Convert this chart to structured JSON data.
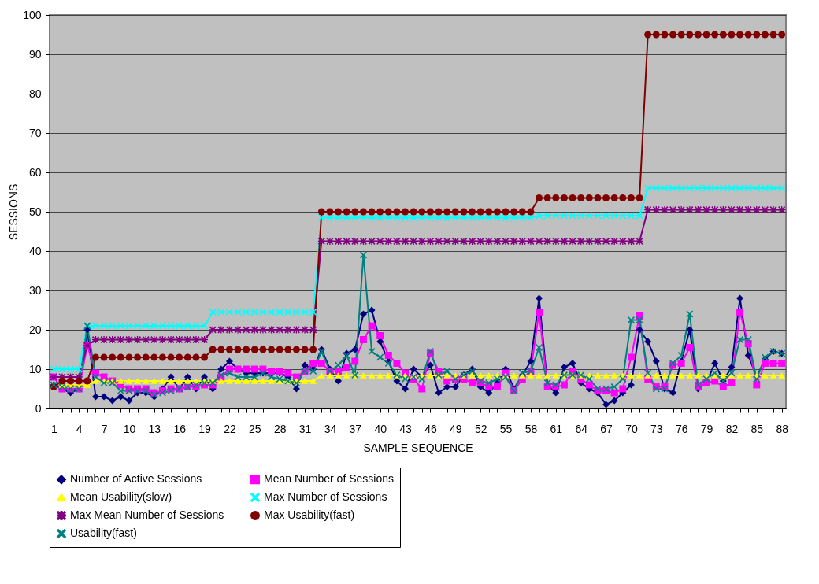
{
  "chart_data": {
    "type": "line",
    "xlabel": "SAMPLE SEQUENCE",
    "ylabel": "SESSIONS",
    "categories": [
      "1",
      null,
      null,
      "4",
      null,
      null,
      "7",
      null,
      null,
      "10",
      null,
      null,
      "13",
      null,
      null,
      "16",
      null,
      null,
      "19",
      null,
      null,
      "22",
      null,
      null,
      "25",
      null,
      null,
      "28",
      null,
      null,
      "31",
      null,
      null,
      "34",
      null,
      null,
      "37",
      null,
      null,
      "40",
      null,
      null,
      "43",
      null,
      null,
      "46",
      null,
      null,
      "49",
      null,
      null,
      "52",
      null,
      null,
      "55",
      null,
      null,
      "58",
      null,
      null,
      "61",
      null,
      null,
      "64",
      null,
      null,
      "67",
      null,
      null,
      "70",
      null,
      null,
      "73",
      null,
      null,
      "76",
      null,
      null,
      "79",
      null,
      null,
      "82",
      null,
      null,
      "85",
      null,
      null,
      "88"
    ],
    "ylim": [
      0,
      100
    ],
    "yticks": [
      0,
      10,
      20,
      30,
      40,
      50,
      60,
      70,
      80,
      90,
      100
    ],
    "grid": "y",
    "legend": "bottom",
    "series": [
      {
        "name": "Number of Active Sessions",
        "color": "#000080",
        "marker": "diamond",
        "values": [
          6,
          5,
          4,
          5,
          20,
          3,
          3,
          2,
          3,
          2,
          4,
          4,
          3,
          5,
          8,
          5,
          8,
          5,
          8,
          5,
          10,
          12,
          10,
          9,
          9,
          9,
          9,
          9,
          8,
          5,
          11,
          10,
          15,
          10,
          7,
          14,
          15,
          24,
          25,
          17,
          12,
          7,
          5,
          10,
          8,
          11,
          4,
          5.5,
          5.5,
          8.5,
          10,
          5.5,
          4,
          6.5,
          10,
          5,
          8.5,
          12,
          28,
          6,
          4,
          10.5,
          11.5,
          6.5,
          5,
          4,
          1,
          2,
          4,
          6,
          20,
          17,
          12,
          5,
          4,
          12,
          20,
          5,
          6.5,
          11.5,
          7,
          10.5,
          28,
          13.5,
          8,
          12.5,
          14.5,
          14
        ]
      },
      {
        "name": "Mean Number of Sessions",
        "color": "#ff00ff",
        "marker": "square",
        "values": [
          8,
          5,
          5,
          5,
          16,
          9,
          8,
          7,
          6,
          5,
          5,
          5,
          4,
          4.5,
          5,
          5,
          5.5,
          5.5,
          6,
          6,
          8,
          10,
          10,
          10,
          10,
          10,
          9.5,
          9.5,
          9,
          8,
          9.5,
          11.5,
          11.5,
          9.5,
          9.5,
          10.5,
          12,
          17.5,
          21,
          18.5,
          13.5,
          11.5,
          9,
          7.5,
          5,
          14,
          9.5,
          7,
          7.5,
          7.5,
          6.5,
          6.5,
          5.5,
          5.5,
          9,
          4.5,
          7.5,
          9.5,
          24.5,
          5.5,
          5.5,
          6,
          9.5,
          7.5,
          6,
          4.5,
          4.5,
          4,
          5,
          13,
          23.5,
          7.5,
          5.5,
          5.5,
          11,
          11.5,
          15.5,
          5.5,
          6.5,
          7,
          5.5,
          6.5,
          24.5,
          16.5,
          6,
          11.5,
          11.5,
          11.5
        ]
      },
      {
        "name": "Mean Usability(slow)",
        "color": "#ffff00",
        "marker": "triangle",
        "values": [
          6,
          6,
          6,
          6,
          6,
          7,
          7,
          7,
          7,
          7,
          7,
          7,
          7,
          7,
          7,
          7,
          7,
          7,
          7,
          7,
          7,
          7,
          7,
          7,
          7,
          7,
          7,
          7,
          7,
          7,
          7,
          7,
          8.4,
          8.4,
          8.4,
          8.4,
          8.4,
          8.4,
          8.4,
          8.4,
          8.4,
          8.4,
          8.4,
          8.4,
          8.4,
          8.4,
          8.4,
          8.4,
          8.4,
          8.4,
          8.4,
          8.4,
          8.4,
          8.4,
          8.4,
          8.4,
          8.4,
          8.4,
          8.4,
          8.4,
          8.4,
          8.4,
          8.4,
          8.4,
          8.4,
          8.4,
          8.4,
          8.4,
          8.4,
          8.4,
          8.4,
          8.4,
          8.4,
          8.4,
          8.4,
          8.4,
          8.4,
          8.4,
          8.4,
          8.4,
          8.4,
          8.4,
          8.4,
          8.4,
          8.4,
          8.4,
          8.4,
          8.4
        ]
      },
      {
        "name": "Max Number of Sessions",
        "color": "#00ffff",
        "marker": "cross",
        "values": [
          10,
          10,
          10,
          10,
          21,
          21,
          21,
          21,
          21,
          21,
          21,
          21,
          21,
          21,
          21,
          21,
          21,
          21,
          21,
          24.5,
          24.5,
          24.5,
          24.5,
          24.5,
          24.5,
          24.5,
          24.5,
          24.5,
          24.5,
          24.5,
          24.5,
          24.5,
          48.5,
          48.5,
          48.5,
          48.5,
          48.5,
          48.5,
          48.5,
          48.5,
          48.5,
          48.5,
          48.5,
          48.5,
          48.5,
          48.5,
          48.5,
          48.5,
          48.5,
          48.5,
          48.5,
          48.5,
          48.5,
          48.5,
          48.5,
          48.5,
          48.5,
          48.5,
          49,
          49,
          49,
          49,
          49,
          49,
          49,
          49,
          49,
          49,
          49,
          49,
          49,
          56,
          56,
          56,
          56,
          56,
          56,
          56,
          56,
          56,
          56,
          56,
          56,
          56,
          56,
          56,
          56,
          56
        ]
      },
      {
        "name": "Max Mean Number of Sessions",
        "color": "#800080",
        "marker": "star",
        "values": [
          8,
          8,
          8,
          8,
          16,
          17.5,
          17.5,
          17.5,
          17.5,
          17.5,
          17.5,
          17.5,
          17.5,
          17.5,
          17.5,
          17.5,
          17.5,
          17.5,
          17.5,
          20,
          20,
          20,
          20,
          20,
          20,
          20,
          20,
          20,
          20,
          20,
          20,
          20,
          42.5,
          42.5,
          42.5,
          42.5,
          42.5,
          42.5,
          42.5,
          42.5,
          42.5,
          42.5,
          42.5,
          42.5,
          42.5,
          42.5,
          42.5,
          42.5,
          42.5,
          42.5,
          42.5,
          42.5,
          42.5,
          42.5,
          42.5,
          42.5,
          42.5,
          42.5,
          42.5,
          42.5,
          42.5,
          42.5,
          42.5,
          42.5,
          42.5,
          42.5,
          42.5,
          42.5,
          42.5,
          42.5,
          42.5,
          50.5,
          50.5,
          50.5,
          50.5,
          50.5,
          50.5,
          50.5,
          50.5,
          50.5,
          50.5,
          50.5,
          50.5,
          50.5,
          50.5,
          50.5,
          50.5,
          50.5
        ]
      },
      {
        "name": "Max Usability(fast)",
        "color": "#800000",
        "marker": "circle",
        "values": [
          5.5,
          7,
          7,
          7,
          7,
          13,
          13,
          13,
          13,
          13,
          13,
          13,
          13,
          13,
          13,
          13,
          13,
          13,
          13,
          15,
          15,
          15,
          15,
          15,
          15,
          15,
          15,
          15,
          15,
          15,
          15,
          15,
          50,
          50,
          50,
          50,
          50,
          50,
          50,
          50,
          50,
          50,
          50,
          50,
          50,
          50,
          50,
          50,
          50,
          50,
          50,
          50,
          50,
          50,
          50,
          50,
          50,
          50,
          53.5,
          53.5,
          53.5,
          53.5,
          53.5,
          53.5,
          53.5,
          53.5,
          53.5,
          53.5,
          53.5,
          53.5,
          53.5,
          95,
          95,
          95,
          95,
          95,
          95,
          95,
          95,
          95,
          95,
          95,
          95,
          95,
          95,
          95,
          95,
          95
        ]
      },
      {
        "name": "Usability(fast)",
        "color": "#008080",
        "marker": "cross",
        "values": [
          6,
          5.5,
          5,
          5,
          21,
          8,
          6.5,
          6.5,
          4.5,
          4.5,
          4.5,
          4.5,
          3.5,
          4,
          4.5,
          5,
          5.5,
          6,
          6.5,
          6.5,
          8.5,
          9,
          8,
          8,
          8,
          9,
          8,
          7.5,
          7,
          6.5,
          9.5,
          9.5,
          14.5,
          9.5,
          11,
          13.5,
          8.5,
          39,
          14.5,
          13,
          11.5,
          8.5,
          7.5,
          8,
          7.5,
          14.5,
          8.5,
          9.5,
          7.5,
          8.5,
          9.5,
          7,
          6.5,
          7.5,
          8,
          4.5,
          9,
          9.5,
          15.5,
          6.5,
          6,
          8.5,
          8.5,
          8.5,
          7.5,
          5,
          5,
          5.5,
          7.5,
          22.5,
          22.5,
          9,
          5,
          5,
          11.5,
          13.5,
          24,
          6,
          7.5,
          9,
          7,
          9,
          17.5,
          17.5,
          7.5,
          13,
          14.5,
          14
        ]
      }
    ]
  }
}
